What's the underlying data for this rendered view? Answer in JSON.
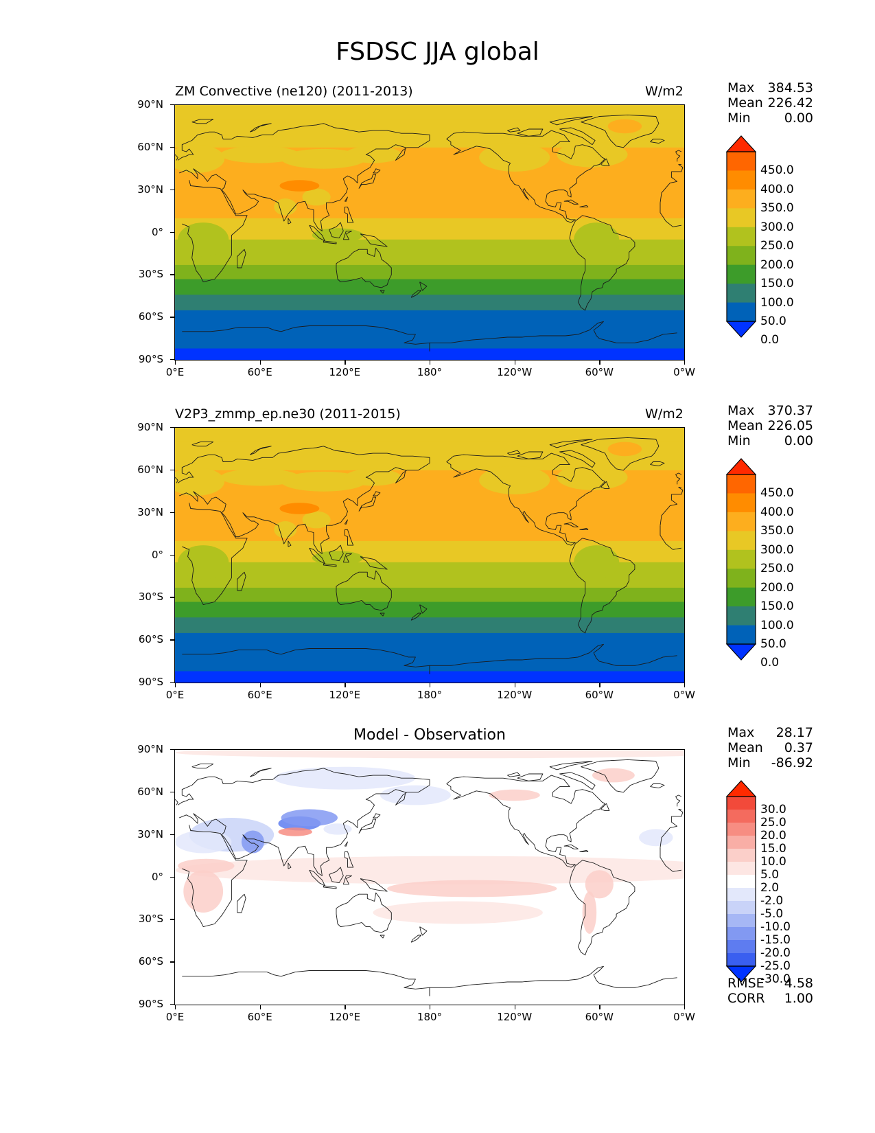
{
  "figure_title": "FSDSC JJA global",
  "lat_ticks": [
    "90°N",
    "60°N",
    "30°N",
    "0°",
    "30°S",
    "60°S",
    "90°S"
  ],
  "lon_ticks": [
    "0°E",
    "60°E",
    "120°E",
    "180°",
    "120°W",
    "60°W",
    "0°W"
  ],
  "chart_data": [
    {
      "type": "heatmap",
      "title": "ZM Convective (ne120) (2011-2013)",
      "units": "W/m2",
      "stats": {
        "max_label": "Max",
        "max": "384.53",
        "mean_label": "Mean",
        "mean": "226.42",
        "min_label": "Min",
        "min": "0.00"
      },
      "colorbar": {
        "levels": [
          "450.0",
          "400.0",
          "350.0",
          "300.0",
          "250.0",
          "200.0",
          "150.0",
          "100.0",
          "50.0",
          "0.0"
        ],
        "colors": [
          "#ff2a00",
          "#ff6600",
          "#ff8c00",
          "#fdae1e",
          "#e8c825",
          "#b1c21e",
          "#7fb21c",
          "#3d9c2a",
          "#2f7f72",
          "#0062b8",
          "#0033ff"
        ]
      },
      "zonal_bands": [
        {
          "lat": [
            90,
            80
          ],
          "value": 280,
          "color": "#e8c825"
        },
        {
          "lat": [
            80,
            60
          ],
          "value": 285,
          "color": "#e8c825"
        },
        {
          "lat": [
            60,
            10
          ],
          "value": 315,
          "color": "#fdae1e"
        },
        {
          "lat": [
            10,
            -5
          ],
          "value": 280,
          "color": "#e8c825"
        },
        {
          "lat": [
            -5,
            -23
          ],
          "value": 230,
          "color": "#b1c21e"
        },
        {
          "lat": [
            -23,
            -33
          ],
          "value": 175,
          "color": "#7fb21c"
        },
        {
          "lat": [
            -33,
            -44
          ],
          "value": 125,
          "color": "#3d9c2a"
        },
        {
          "lat": [
            -44,
            -55
          ],
          "value": 75,
          "color": "#2f7f72"
        },
        {
          "lat": [
            -55,
            -82
          ],
          "value": 25,
          "color": "#0062b8"
        },
        {
          "lat": [
            -82,
            -90
          ],
          "value": 0,
          "color": "#0033ff"
        }
      ]
    },
    {
      "type": "heatmap",
      "title": "V2P3_zmmp_ep.ne30 (2011-2015)",
      "units": "W/m2",
      "stats": {
        "max_label": "Max",
        "max": "370.37",
        "mean_label": "Mean",
        "mean": "226.05",
        "min_label": "Min",
        "min": "0.00"
      },
      "colorbar": {
        "levels": [
          "450.0",
          "400.0",
          "350.0",
          "300.0",
          "250.0",
          "200.0",
          "150.0",
          "100.0",
          "50.0",
          "0.0"
        ],
        "colors": [
          "#ff2a00",
          "#ff6600",
          "#ff8c00",
          "#fdae1e",
          "#e8c825",
          "#b1c21e",
          "#7fb21c",
          "#3d9c2a",
          "#2f7f72",
          "#0062b8",
          "#0033ff"
        ]
      },
      "zonal_bands": [
        {
          "lat": [
            90,
            80
          ],
          "value": 280,
          "color": "#e8c825"
        },
        {
          "lat": [
            80,
            60
          ],
          "value": 285,
          "color": "#e8c825"
        },
        {
          "lat": [
            60,
            10
          ],
          "value": 315,
          "color": "#fdae1e"
        },
        {
          "lat": [
            10,
            -5
          ],
          "value": 280,
          "color": "#e8c825"
        },
        {
          "lat": [
            -5,
            -23
          ],
          "value": 230,
          "color": "#b1c21e"
        },
        {
          "lat": [
            -23,
            -33
          ],
          "value": 175,
          "color": "#7fb21c"
        },
        {
          "lat": [
            -33,
            -44
          ],
          "value": 125,
          "color": "#3d9c2a"
        },
        {
          "lat": [
            -44,
            -55
          ],
          "value": 75,
          "color": "#2f7f72"
        },
        {
          "lat": [
            -55,
            -82
          ],
          "value": 25,
          "color": "#0062b8"
        },
        {
          "lat": [
            -82,
            -90
          ],
          "value": 0,
          "color": "#0033ff"
        }
      ]
    },
    {
      "type": "heatmap",
      "title": "Model - Observation",
      "units": "",
      "stats": {
        "max_label": "Max",
        "max": "28.17",
        "mean_label": "Mean",
        "mean": "0.37",
        "min_label": "Min",
        "min": "-86.92"
      },
      "colorbar": {
        "levels": [
          "30.0",
          "25.0",
          "20.0",
          "15.0",
          "10.0",
          "5.0",
          "2.0",
          "-2.0",
          "-5.0",
          "-10.0",
          "-15.0",
          "-20.0",
          "-25.0",
          "-30.0"
        ],
        "colors": [
          "#ff2a00",
          "#f24a3a",
          "#f46b5e",
          "#f78d82",
          "#f9aea6",
          "#fbcfc9",
          "#fde6e3",
          "#ffffff",
          "#e3e8fb",
          "#c9d3f8",
          "#a6b7f5",
          "#8299f2",
          "#5e7cf0",
          "#3a5ff0",
          "#0033ff"
        ]
      },
      "rmse_label": "RMSE",
      "rmse": "4.58",
      "corr_label": "CORR",
      "corr": "1.00"
    }
  ]
}
